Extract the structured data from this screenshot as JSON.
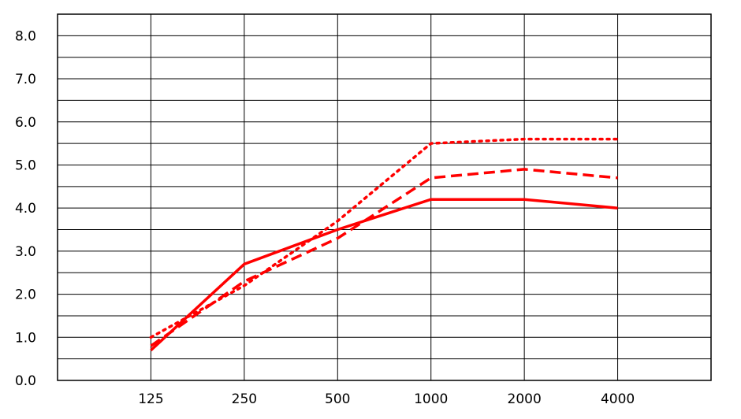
{
  "chart_data": {
    "type": "line",
    "categories": [
      "125",
      "250",
      "500",
      "1000",
      "2000",
      "4000"
    ],
    "series": [
      {
        "style": "solid",
        "color": "#ff0000",
        "values": [
          0.7,
          2.7,
          3.5,
          4.2,
          4.2,
          4.0
        ]
      },
      {
        "style": "dashed",
        "color": "#ff0000",
        "values": [
          0.8,
          2.3,
          3.3,
          4.7,
          4.9,
          4.7
        ]
      },
      {
        "style": "dotted",
        "color": "#ff0000",
        "values": [
          1.0,
          2.2,
          3.7,
          5.5,
          5.6,
          5.6
        ]
      }
    ],
    "y_ticks": [
      "0.0",
      "1.0",
      "2.0",
      "3.0",
      "4.0",
      "5.0",
      "6.0",
      "7.0",
      "8.0"
    ],
    "ylim": [
      0,
      8.5
    ],
    "y_minor_step": 0.5,
    "grid": true,
    "title": "",
    "xlabel": "",
    "ylabel": ""
  }
}
